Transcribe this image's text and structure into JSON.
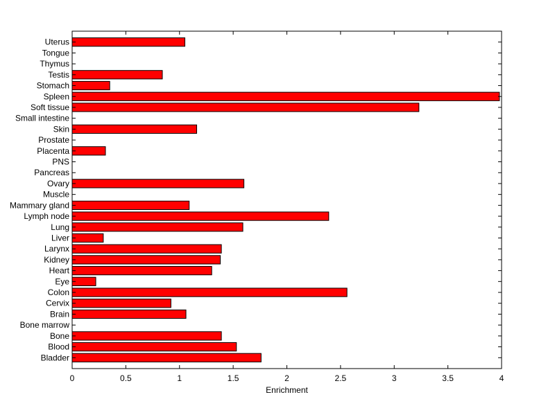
{
  "chart_data": {
    "type": "bar",
    "orientation": "horizontal",
    "categories": [
      "Bladder",
      "Blood",
      "Bone",
      "Bone marrow",
      "Brain",
      "Cervix",
      "Colon",
      "Eye",
      "Heart",
      "Kidney",
      "Larynx",
      "Liver",
      "Lung",
      "Lymph node",
      "Mammary gland",
      "Muscle",
      "Ovary",
      "Pancreas",
      "PNS",
      "Placenta",
      "Prostate",
      "Skin",
      "Small intestine",
      "Soft tissue",
      "Spleen",
      "Stomach",
      "Testis",
      "Thymus",
      "Tongue",
      "Uterus"
    ],
    "values": [
      1.76,
      1.53,
      1.39,
      0,
      1.06,
      0.92,
      2.56,
      0.22,
      1.3,
      1.38,
      1.39,
      0.29,
      1.59,
      2.39,
      1.09,
      0,
      1.6,
      0,
      0,
      0.31,
      0,
      1.16,
      0,
      3.23,
      3.98,
      0.35,
      0.84,
      0,
      0,
      1.05
    ],
    "xlabel": "Enrichment",
    "ylabel": "",
    "title": "",
    "xlim": [
      0,
      4
    ],
    "xticks": [
      "0",
      "0.5",
      "1",
      "1.5",
      "2",
      "2.5",
      "3",
      "3.5",
      "4"
    ],
    "grid": false,
    "legend": "none",
    "bar_color": "#ff0000",
    "edge_color": "#000000"
  }
}
